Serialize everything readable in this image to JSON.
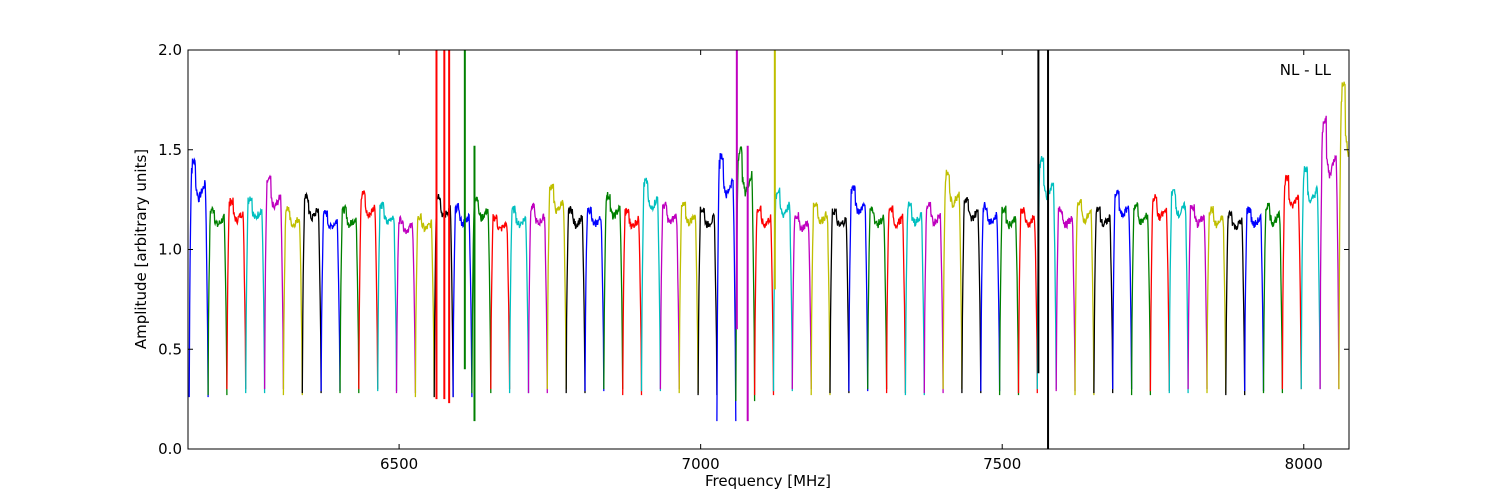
{
  "chart_data": {
    "type": "line",
    "title": "",
    "annotation": "NL - LL",
    "xlabel": "Frequency [MHz]",
    "ylabel": "Amplitude [arbitrary units]",
    "xlim": [
      6150,
      8075
    ],
    "ylim": [
      0.0,
      2.0
    ],
    "xticks": [
      {
        "value": 6500,
        "label": "6500"
      },
      {
        "value": 7000,
        "label": "7000"
      },
      {
        "value": 7500,
        "label": "7500"
      },
      {
        "value": 8000,
        "label": "8000"
      }
    ],
    "yticks": [
      {
        "value": 0.0,
        "label": "0.0"
      },
      {
        "value": 0.5,
        "label": "0.5"
      },
      {
        "value": 1.0,
        "label": "1.0"
      },
      {
        "value": 1.5,
        "label": "1.5"
      },
      {
        "value": 2.0,
        "label": "2.0"
      }
    ],
    "grid": false,
    "color_cycle": [
      "#0000ff",
      "#008000",
      "#ff0000",
      "#00bfbf",
      "#bf00bf",
      "#bfbf00",
      "#000000"
    ],
    "band_width_mhz": 31.25,
    "band_start_mhz": 6152,
    "band_peaks": [
      1.46,
      1.22,
      1.26,
      1.28,
      1.37,
      1.22,
      1.28,
      1.2,
      1.22,
      1.3,
      1.24,
      1.17,
      1.18,
      1.29,
      1.23,
      1.28,
      1.18,
      1.22,
      1.23,
      1.34,
      1.22,
      1.22,
      1.29,
      1.21,
      1.36,
      1.24,
      1.24,
      1.22,
      1.49,
      1.52,
      1.22,
      1.31,
      1.19,
      1.25,
      1.21,
      1.33,
      1.22,
      1.22,
      1.24,
      1.24,
      1.4,
      1.27,
      1.24,
      1.22,
      1.22,
      1.47,
      1.22,
      1.26,
      1.22,
      1.3,
      1.24,
      1.28,
      1.31,
      1.23,
      1.22,
      1.2,
      1.22,
      1.24,
      1.38,
      1.42,
      1.67,
      1.85
    ],
    "band_dips": [
      0.26,
      0.27,
      0.3,
      0.28,
      0.3,
      0.27,
      0.28,
      0.29,
      0.28,
      0.3,
      0.29,
      0.28,
      0.26,
      0.26,
      0.26,
      0.28,
      0.3,
      0.28,
      0.28,
      0.3,
      0.28,
      0.29,
      0.3,
      0.27,
      0.29,
      0.3,
      0.28,
      0.27,
      0.14,
      0.24,
      0.27,
      0.29,
      0.3,
      0.27,
      0.28,
      0.29,
      0.3,
      0.28,
      0.27,
      0.28,
      0.3,
      0.28,
      0.29,
      0.27,
      0.28,
      0.3,
      0.29,
      0.27,
      0.28,
      0.3,
      0.27,
      0.29,
      0.28,
      0.3,
      0.28,
      0.27,
      0.29,
      0.28,
      0.3,
      0.3,
      0.3,
      0.3
    ],
    "rfi_spikes": [
      {
        "freq": 6562,
        "min": 0.25,
        "max": 2.0,
        "series_index": 2
      },
      {
        "freq": 6575,
        "min": 0.25,
        "max": 2.0,
        "series_index": 2
      },
      {
        "freq": 6583,
        "min": 0.23,
        "max": 2.0,
        "series_index": 2
      },
      {
        "freq": 6609,
        "min": 0.4,
        "max": 2.0,
        "series_index": 1
      },
      {
        "freq": 6625,
        "min": 0.14,
        "max": 1.52,
        "series_index": 1
      },
      {
        "freq": 7060,
        "min": 0.6,
        "max": 2.0,
        "series_index": 4
      },
      {
        "freq": 7078,
        "min": 0.14,
        "max": 1.52,
        "series_index": 4
      },
      {
        "freq": 7123,
        "min": 0.8,
        "max": 2.0,
        "series_index": 5
      },
      {
        "freq": 7560,
        "min": 0.38,
        "max": 2.0,
        "series_index": 6
      },
      {
        "freq": 7576,
        "min": 0.0,
        "max": 2.0,
        "series_index": 6
      }
    ]
  }
}
